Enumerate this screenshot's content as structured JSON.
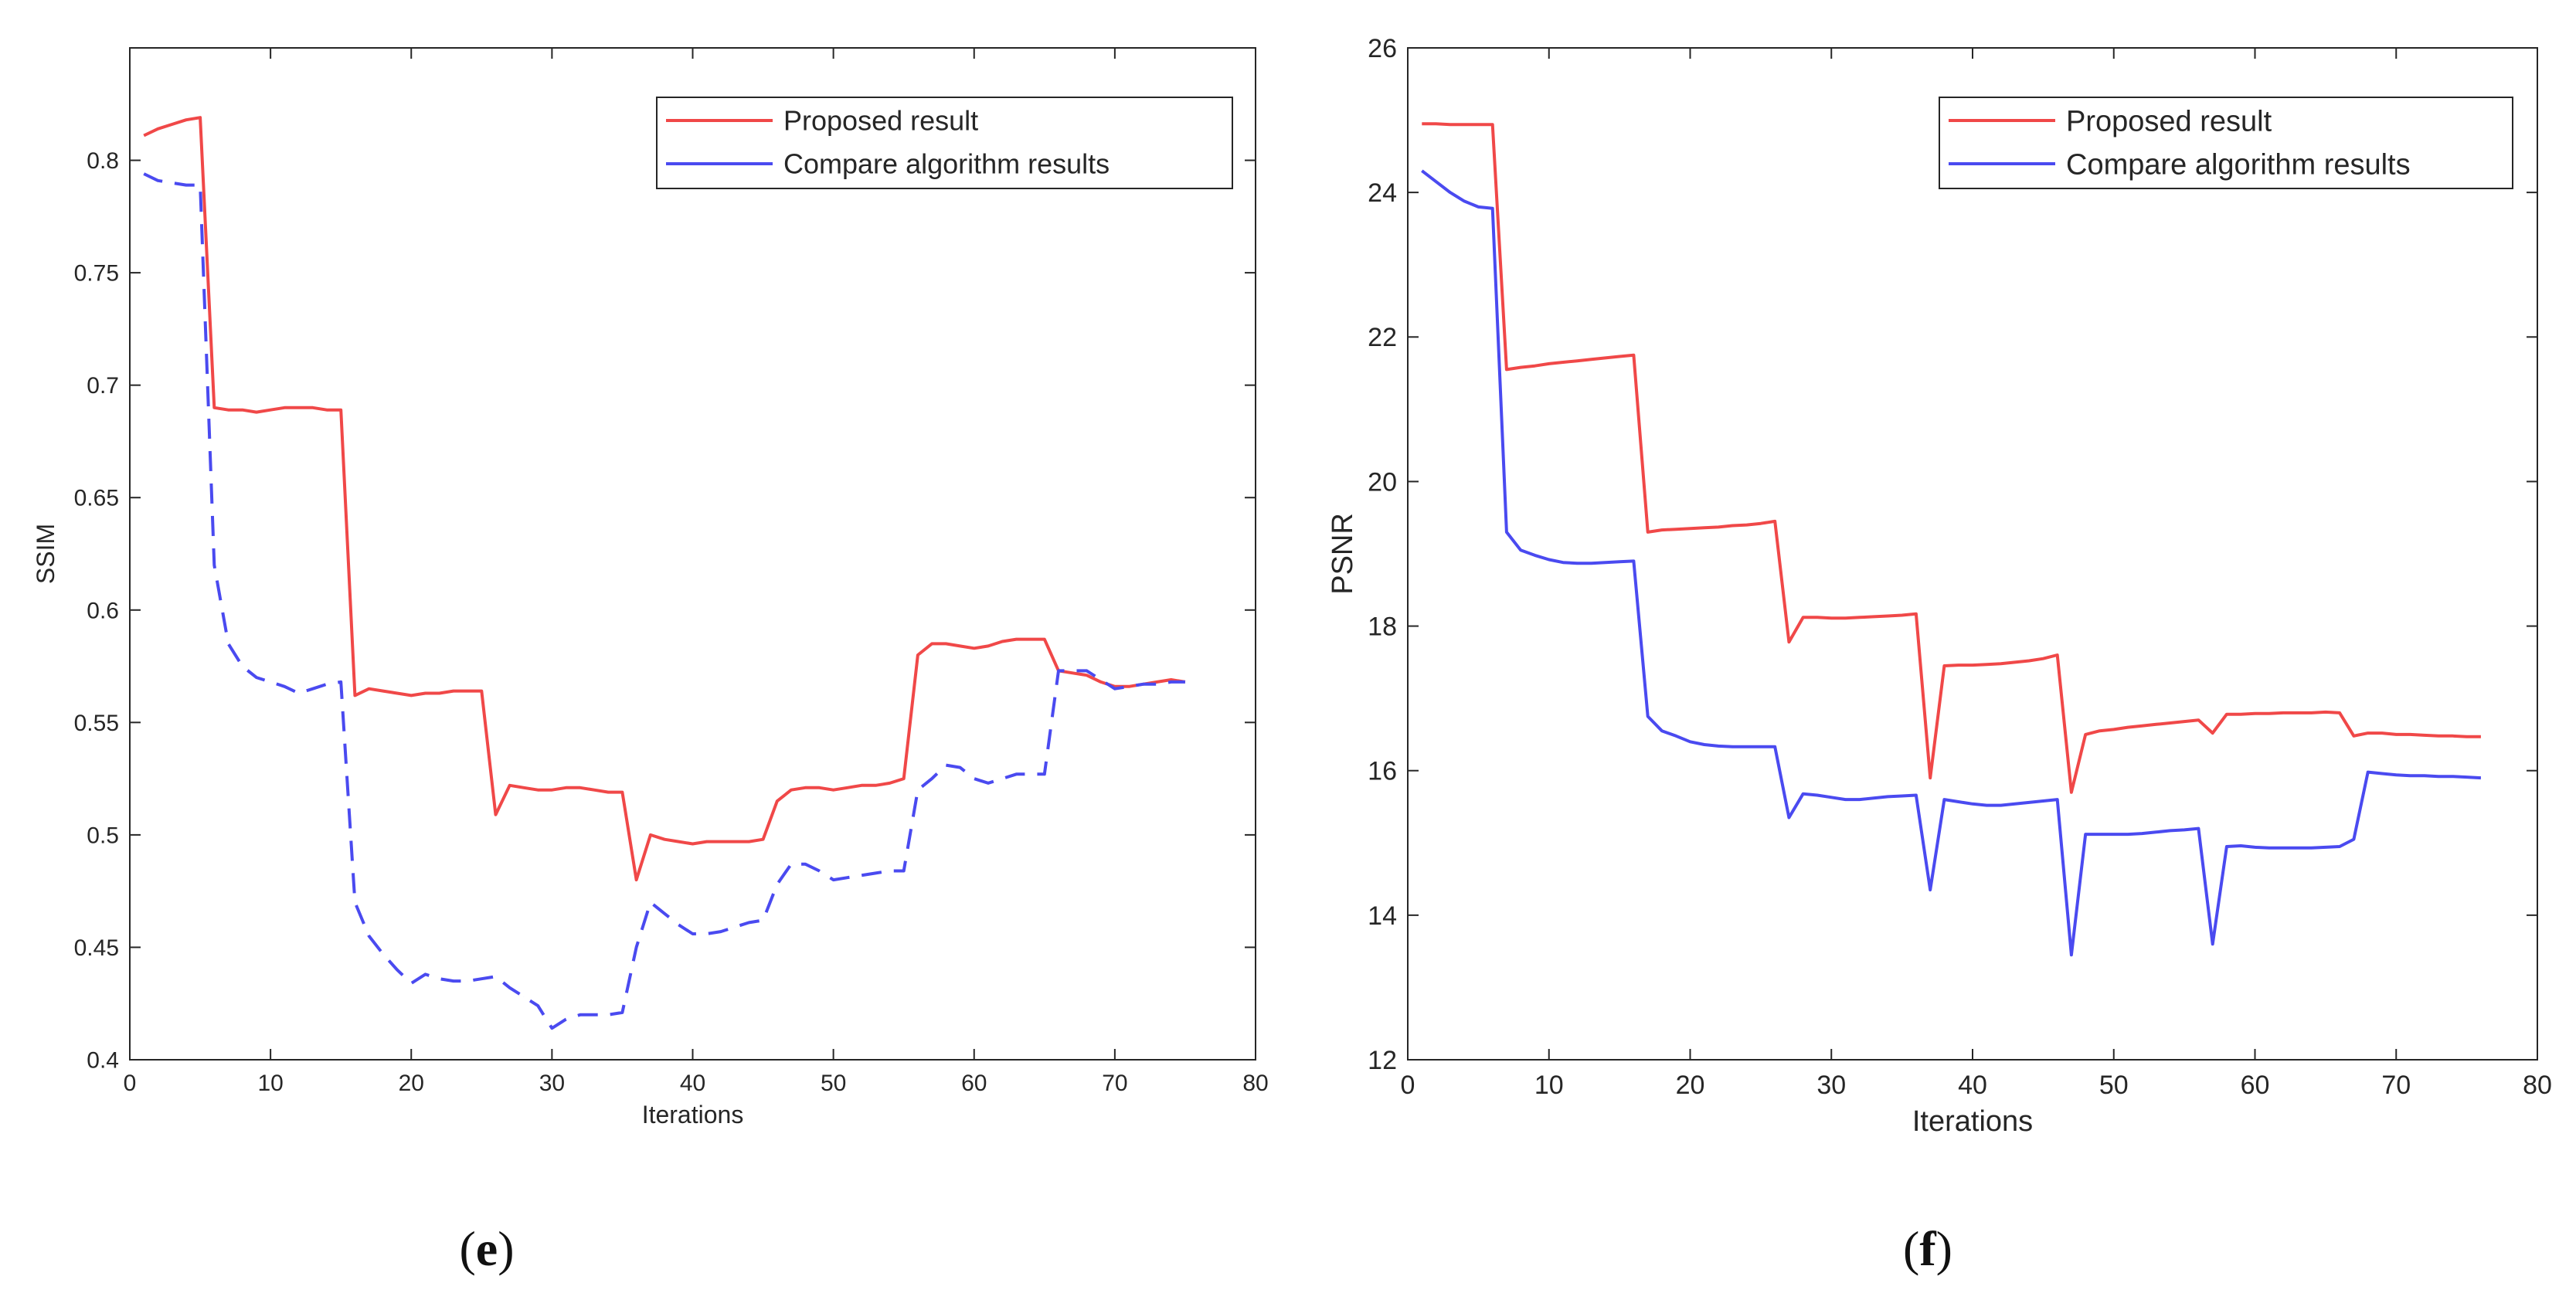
{
  "chart_data": [
    {
      "type": "line",
      "panel_label": "e",
      "xlabel": "Iterations",
      "ylabel": "SSIM",
      "xlim": [
        0,
        80
      ],
      "ylim": [
        0.4,
        0.85
      ],
      "xticks": [
        "0",
        "10",
        "20",
        "30",
        "40",
        "50",
        "60",
        "70",
        "80"
      ],
      "yticks": [
        "0.4",
        "0.45",
        "0.5",
        "0.55",
        "0.6",
        "0.65",
        "0.7",
        "0.75",
        "0.8"
      ],
      "grid": false,
      "legend_position": "top-right",
      "series": [
        {
          "name": "Proposed result",
          "color": "#f04848",
          "style": "solid",
          "x": [
            1,
            2,
            3,
            4,
            5,
            6,
            7,
            8,
            9,
            10,
            11,
            12,
            13,
            14,
            15,
            16,
            17,
            18,
            19,
            20,
            21,
            22,
            23,
            24,
            25,
            26,
            27,
            28,
            29,
            30,
            31,
            32,
            33,
            34,
            35,
            36,
            37,
            38,
            39,
            40,
            41,
            42,
            43,
            44,
            45,
            46,
            47,
            48,
            49,
            50,
            51,
            52,
            53,
            54,
            55,
            56,
            57,
            58,
            59,
            60,
            61,
            62,
            63,
            64,
            65,
            66,
            67,
            68,
            69,
            70,
            71,
            72,
            73,
            74,
            75
          ],
          "y": [
            0.811,
            0.814,
            0.816,
            0.818,
            0.819,
            0.69,
            0.689,
            0.689,
            0.688,
            0.689,
            0.69,
            0.69,
            0.69,
            0.689,
            0.689,
            0.562,
            0.565,
            0.564,
            0.563,
            0.562,
            0.563,
            0.563,
            0.564,
            0.564,
            0.564,
            0.509,
            0.522,
            0.521,
            0.52,
            0.52,
            0.521,
            0.521,
            0.52,
            0.519,
            0.519,
            0.48,
            0.5,
            0.498,
            0.497,
            0.496,
            0.497,
            0.497,
            0.497,
            0.497,
            0.498,
            0.515,
            0.52,
            0.521,
            0.521,
            0.52,
            0.521,
            0.522,
            0.522,
            0.523,
            0.525,
            0.58,
            0.585,
            0.585,
            0.584,
            0.583,
            0.584,
            0.586,
            0.587,
            0.587,
            0.587,
            0.573,
            0.572,
            0.571,
            0.568,
            0.566,
            0.566,
            0.567,
            0.568,
            0.569,
            0.568
          ]
        },
        {
          "name": "Compare algorithm results",
          "color": "#4a4af0",
          "style": "dashed",
          "x": [
            1,
            2,
            3,
            4,
            5,
            6,
            7,
            8,
            9,
            10,
            11,
            12,
            13,
            14,
            15,
            16,
            17,
            18,
            19,
            20,
            21,
            22,
            23,
            24,
            25,
            26,
            27,
            28,
            29,
            30,
            31,
            32,
            33,
            34,
            35,
            36,
            37,
            38,
            39,
            40,
            41,
            42,
            43,
            44,
            45,
            46,
            47,
            48,
            49,
            50,
            51,
            52,
            53,
            54,
            55,
            56,
            57,
            58,
            59,
            60,
            61,
            62,
            63,
            64,
            65,
            66,
            67,
            68,
            69,
            70,
            71,
            72,
            73,
            74,
            75
          ],
          "y": [
            0.794,
            0.791,
            0.79,
            0.789,
            0.789,
            0.62,
            0.585,
            0.575,
            0.57,
            0.568,
            0.566,
            0.563,
            0.565,
            0.567,
            0.568,
            0.47,
            0.455,
            0.447,
            0.44,
            0.434,
            0.438,
            0.436,
            0.435,
            0.435,
            0.436,
            0.437,
            0.432,
            0.428,
            0.424,
            0.414,
            0.418,
            0.42,
            0.42,
            0.42,
            0.421,
            0.45,
            0.47,
            0.465,
            0.46,
            0.456,
            0.456,
            0.457,
            0.459,
            0.461,
            0.462,
            0.478,
            0.487,
            0.487,
            0.484,
            0.48,
            0.481,
            0.482,
            0.483,
            0.484,
            0.484,
            0.52,
            0.525,
            0.531,
            0.53,
            0.525,
            0.523,
            0.525,
            0.527,
            0.527,
            0.527,
            0.573,
            0.573,
            0.573,
            0.569,
            0.565,
            0.566,
            0.567,
            0.567,
            0.568,
            0.568
          ]
        }
      ]
    },
    {
      "type": "line",
      "panel_label": "f",
      "xlabel": "Iterations",
      "ylabel": "PSNR",
      "xlim": [
        0,
        80
      ],
      "ylim": [
        12,
        26
      ],
      "xticks": [
        "0",
        "10",
        "20",
        "30",
        "40",
        "50",
        "60",
        "70",
        "80"
      ],
      "yticks": [
        "12",
        "14",
        "16",
        "18",
        "20",
        "22",
        "24",
        "26"
      ],
      "grid": false,
      "legend_position": "top-right",
      "series": [
        {
          "name": "Proposed result",
          "color": "#f04848",
          "style": "solid",
          "x": [
            1,
            2,
            3,
            4,
            5,
            6,
            7,
            8,
            9,
            10,
            11,
            12,
            13,
            14,
            15,
            16,
            17,
            18,
            19,
            20,
            21,
            22,
            23,
            24,
            25,
            26,
            27,
            28,
            29,
            30,
            31,
            32,
            33,
            34,
            35,
            36,
            37,
            38,
            39,
            40,
            41,
            42,
            43,
            44,
            45,
            46,
            47,
            48,
            49,
            50,
            51,
            52,
            53,
            54,
            55,
            56,
            57,
            58,
            59,
            60,
            61,
            62,
            63,
            64,
            65,
            66,
            67,
            68,
            69,
            70,
            71,
            72,
            73,
            74,
            75,
            76
          ],
          "y": [
            24.95,
            24.95,
            24.94,
            24.94,
            24.94,
            24.94,
            21.55,
            21.58,
            21.6,
            21.63,
            21.65,
            21.67,
            21.69,
            21.71,
            21.73,
            21.75,
            19.3,
            19.33,
            19.34,
            19.35,
            19.36,
            19.37,
            19.39,
            19.4,
            19.42,
            19.45,
            17.78,
            18.12,
            18.12,
            18.11,
            18.11,
            18.12,
            18.13,
            18.14,
            18.15,
            18.17,
            15.9,
            17.45,
            17.46,
            17.46,
            17.47,
            17.48,
            17.5,
            17.52,
            17.55,
            17.6,
            15.7,
            16.5,
            16.55,
            16.57,
            16.6,
            16.62,
            16.64,
            16.66,
            16.68,
            16.7,
            16.52,
            16.78,
            16.78,
            16.79,
            16.79,
            16.8,
            16.8,
            16.8,
            16.81,
            16.8,
            16.48,
            16.52,
            16.52,
            16.5,
            16.5,
            16.49,
            16.48,
            16.48,
            16.47,
            16.47
          ]
        },
        {
          "name": "Compare algorithm results",
          "color": "#4a4af0",
          "style": "solid",
          "x": [
            1,
            2,
            3,
            4,
            5,
            6,
            7,
            8,
            9,
            10,
            11,
            12,
            13,
            14,
            15,
            16,
            17,
            18,
            19,
            20,
            21,
            22,
            23,
            24,
            25,
            26,
            27,
            28,
            29,
            30,
            31,
            32,
            33,
            34,
            35,
            36,
            37,
            38,
            39,
            40,
            41,
            42,
            43,
            44,
            45,
            46,
            47,
            48,
            49,
            50,
            51,
            52,
            53,
            54,
            55,
            56,
            57,
            58,
            59,
            60,
            61,
            62,
            63,
            64,
            65,
            66,
            67,
            68,
            69,
            70,
            71,
            72,
            73,
            74,
            75,
            76
          ],
          "y": [
            24.3,
            24.15,
            24.0,
            23.88,
            23.8,
            23.78,
            19.3,
            19.05,
            18.98,
            18.92,
            18.88,
            18.87,
            18.87,
            18.88,
            18.89,
            18.9,
            16.75,
            16.55,
            16.48,
            16.4,
            16.36,
            16.34,
            16.33,
            16.33,
            16.33,
            16.33,
            15.35,
            15.68,
            15.66,
            15.63,
            15.6,
            15.6,
            15.62,
            15.64,
            15.65,
            15.66,
            14.35,
            15.6,
            15.57,
            15.54,
            15.52,
            15.52,
            15.54,
            15.56,
            15.58,
            15.6,
            13.45,
            15.12,
            15.12,
            15.12,
            15.12,
            15.13,
            15.15,
            15.17,
            15.18,
            15.2,
            13.6,
            14.95,
            14.96,
            14.94,
            14.93,
            14.93,
            14.93,
            14.93,
            14.94,
            14.95,
            15.05,
            15.98,
            15.96,
            15.94,
            15.93,
            15.93,
            15.92,
            15.92,
            15.91,
            15.9
          ]
        }
      ]
    }
  ]
}
